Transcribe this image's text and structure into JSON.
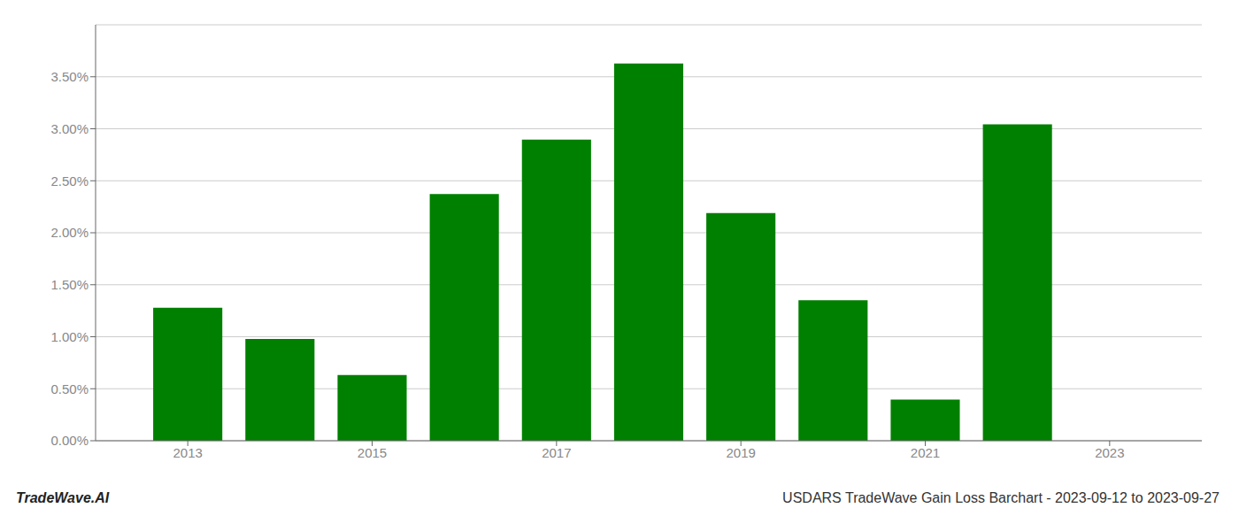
{
  "chart_data": {
    "type": "bar",
    "x": [
      2013,
      2014,
      2015,
      2016,
      2017,
      2018,
      2019,
      2020,
      2021,
      2022
    ],
    "values": [
      0.01278,
      0.00978,
      0.00632,
      0.02372,
      0.02895,
      0.03628,
      0.0219,
      0.01352,
      0.00395,
      0.03042
    ],
    "color": "#008000",
    "xlim": [
      2012.0,
      2024.0
    ],
    "xticks": [
      2013,
      2015,
      2017,
      2019,
      2021,
      2023
    ],
    "ylim": [
      0.0,
      0.04
    ],
    "yticks": [
      {
        "value": 0.0,
        "label": "0.00%"
      },
      {
        "value": 0.005,
        "label": "0.50%"
      },
      {
        "value": 0.01,
        "label": "1.00%"
      },
      {
        "value": 0.015,
        "label": "1.50%"
      },
      {
        "value": 0.02,
        "label": "2.00%"
      },
      {
        "value": 0.025,
        "label": "2.50%"
      },
      {
        "value": 0.03,
        "label": "3.00%"
      },
      {
        "value": 0.035,
        "label": "3.50%"
      }
    ],
    "grid": true,
    "annotations": [
      "TradeWave.AI",
      "USDARS TradeWave Gain Loss Barchart - 2023-09-12 to 2023-09-27"
    ]
  }
}
